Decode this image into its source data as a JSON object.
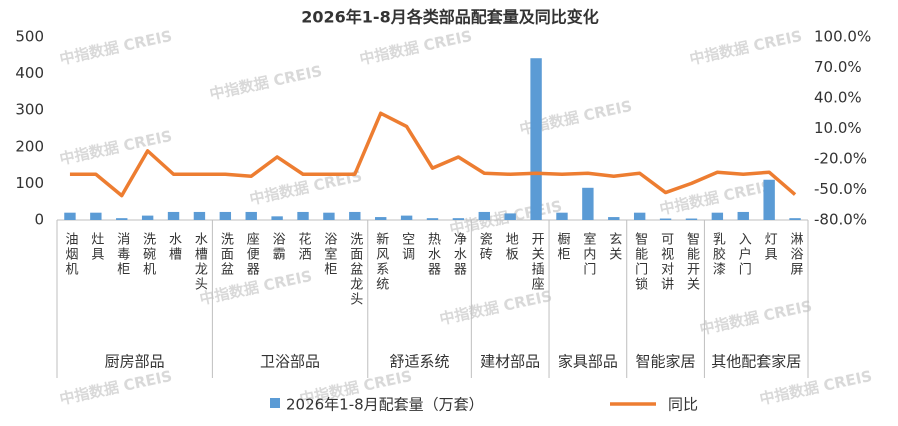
{
  "chart_data": {
    "type": "bar-line",
    "title": "2026年1-8月各类部品配套量及同比变化",
    "watermark": "中指数据 CREIS",
    "category_groups": [
      {
        "name": "厨房部品",
        "categories": [
          "油烟机",
          "灶具",
          "消毒柜",
          "洗碗机",
          "水槽",
          "水槽龙头"
        ]
      },
      {
        "name": "卫浴部品",
        "categories": [
          "洗面盆",
          "座便器",
          "浴霸",
          "花洒",
          "浴室柜",
          "洗面盆龙头"
        ]
      },
      {
        "name": "舒适系统",
        "categories": [
          "新风系统",
          "空调",
          "热水器",
          "净水器"
        ]
      },
      {
        "name": "建材部品",
        "categories": [
          "瓷砖",
          "地板",
          "开关插座"
        ]
      },
      {
        "name": "家具部品",
        "categories": [
          "橱柜",
          "室内门",
          "玄关"
        ]
      },
      {
        "name": "智能家居",
        "categories": [
          "智能门锁",
          "可视对讲",
          "智能开关"
        ]
      },
      {
        "name": "其他配套家居",
        "categories": [
          "乳胶漆",
          "入户门",
          "灯具",
          "淋浴屏"
        ]
      }
    ],
    "series": [
      {
        "name": "2026年1-8月配套量（万套）",
        "type": "bar",
        "color": "#5b9bd5",
        "values": [
          20,
          20,
          5,
          12,
          22,
          22,
          22,
          22,
          10,
          22,
          20,
          22,
          8,
          12,
          5,
          5,
          22,
          18,
          442,
          20,
          88,
          8,
          20,
          4,
          4,
          20,
          22,
          110,
          5
        ]
      },
      {
        "name": "同比",
        "type": "line",
        "axis": "y2",
        "color": "#ed7d31",
        "values": [
          -35,
          -35,
          -56,
          -12,
          -35,
          -35,
          -35,
          -37,
          -18,
          -35,
          -35,
          -35,
          25,
          12,
          -29,
          -18,
          -34,
          -35,
          -34,
          -35,
          -34,
          -37,
          -34,
          -53,
          -44,
          -33,
          -35,
          -33,
          -55
        ]
      }
    ],
    "ylim": [
      0,
      500
    ],
    "yticks": [
      0,
      100,
      200,
      300,
      400,
      500
    ],
    "y2lim": [
      -80,
      100
    ],
    "y2ticks": [
      {
        "value": -80,
        "label": "-80.0%"
      },
      {
        "value": -50,
        "label": "-50.0%"
      },
      {
        "value": -20,
        "label": "-20.0%"
      },
      {
        "value": 10,
        "label": "10.0%"
      },
      {
        "value": 40,
        "label": "40.0%"
      },
      {
        "value": 70,
        "label": "70.0%"
      },
      {
        "value": 100,
        "label": "100.0%"
      }
    ],
    "grid": false,
    "legend": "bottom"
  }
}
